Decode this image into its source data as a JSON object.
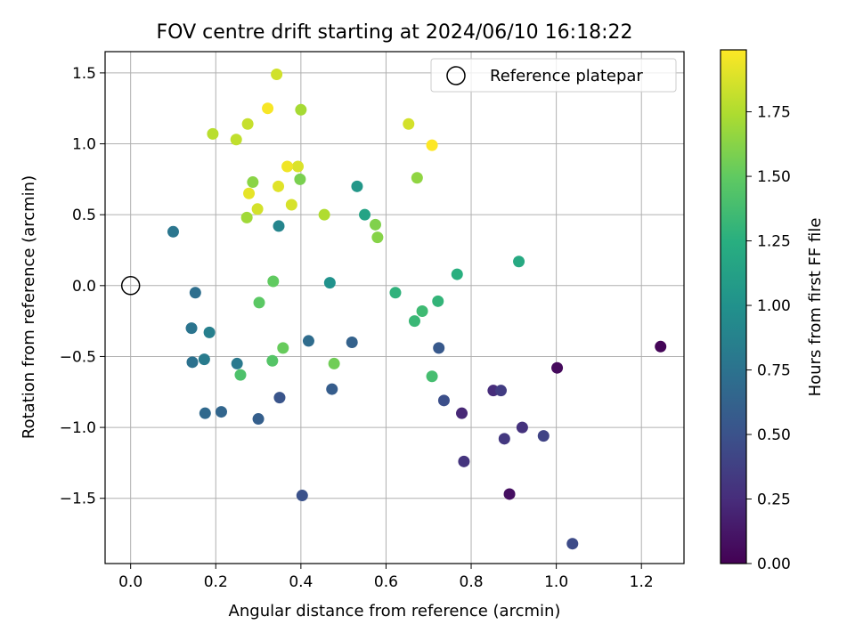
{
  "chart_data": {
    "type": "scatter",
    "title": "FOV centre drift starting at 2024/06/10 16:18:22",
    "xlabel": "Angular distance from reference (arcmin)",
    "ylabel": "Rotation from reference (arcmin)",
    "xlim": [
      -0.06,
      1.3
    ],
    "ylim": [
      -1.96,
      1.65
    ],
    "xticks": [
      0.0,
      0.2,
      0.4,
      0.6,
      0.8,
      1.0,
      1.2
    ],
    "xtick_labels": [
      "0.0",
      "0.2",
      "0.4",
      "0.6",
      "0.8",
      "1.0",
      "1.2"
    ],
    "yticks": [
      -1.5,
      -1.0,
      -0.5,
      0.0,
      0.5,
      1.0,
      1.5
    ],
    "ytick_labels": [
      "−1.5",
      "−1.0",
      "−0.5",
      "0.0",
      "0.5",
      "1.0",
      "1.5"
    ],
    "grid": true,
    "legend_position": "top-right",
    "reference": {
      "name": "Reference platepar",
      "x": 0.0,
      "y": 0.0
    },
    "colorbar": {
      "label": "Hours from first FF file",
      "colormap": "viridis",
      "range": [
        0.0,
        1.99
      ],
      "ticks": [
        0.0,
        0.25,
        0.5,
        0.75,
        1.0,
        1.25,
        1.5,
        1.75
      ],
      "tick_labels": [
        "0.00",
        "0.25",
        "0.50",
        "0.75",
        "1.00",
        "1.25",
        "1.50",
        "1.75"
      ]
    },
    "points": [
      {
        "x": 1.245,
        "y": -0.43,
        "c": 0.02
      },
      {
        "x": 1.002,
        "y": -0.58,
        "c": 0.05
      },
      {
        "x": 0.89,
        "y": -1.47,
        "c": 0.08
      },
      {
        "x": 0.778,
        "y": -0.9,
        "c": 0.22
      },
      {
        "x": 0.852,
        "y": -0.74,
        "c": 0.25
      },
      {
        "x": 0.92,
        "y": -1.0,
        "c": 0.28
      },
      {
        "x": 0.783,
        "y": -1.24,
        "c": 0.3
      },
      {
        "x": 0.878,
        "y": -1.08,
        "c": 0.32
      },
      {
        "x": 0.87,
        "y": -0.74,
        "c": 0.35
      },
      {
        "x": 0.97,
        "y": -1.06,
        "c": 0.4
      },
      {
        "x": 1.038,
        "y": -1.82,
        "c": 0.45
      },
      {
        "x": 0.736,
        "y": -0.81,
        "c": 0.48
      },
      {
        "x": 0.403,
        "y": -1.48,
        "c": 0.5
      },
      {
        "x": 0.35,
        "y": -0.79,
        "c": 0.52
      },
      {
        "x": 0.724,
        "y": -0.44,
        "c": 0.55
      },
      {
        "x": 0.473,
        "y": -0.73,
        "c": 0.58
      },
      {
        "x": 0.3,
        "y": -0.94,
        "c": 0.6
      },
      {
        "x": 0.52,
        "y": -0.4,
        "c": 0.62
      },
      {
        "x": 0.213,
        "y": -0.89,
        "c": 0.65
      },
      {
        "x": 0.175,
        "y": -0.9,
        "c": 0.68
      },
      {
        "x": 0.418,
        "y": -0.39,
        "c": 0.7
      },
      {
        "x": 0.152,
        "y": -0.05,
        "c": 0.72
      },
      {
        "x": 0.145,
        "y": -0.54,
        "c": 0.74
      },
      {
        "x": 0.143,
        "y": -0.3,
        "c": 0.76
      },
      {
        "x": 0.1,
        "y": 0.38,
        "c": 0.78
      },
      {
        "x": 0.25,
        "y": -0.55,
        "c": 0.8
      },
      {
        "x": 0.173,
        "y": -0.52,
        "c": 0.82
      },
      {
        "x": 0.185,
        "y": -0.33,
        "c": 0.85
      },
      {
        "x": 0.348,
        "y": 0.42,
        "c": 0.9
      },
      {
        "x": 0.468,
        "y": 0.02,
        "c": 1.0
      },
      {
        "x": 0.532,
        "y": 0.7,
        "c": 1.05
      },
      {
        "x": 0.55,
        "y": 0.5,
        "c": 1.15
      },
      {
        "x": 0.912,
        "y": 0.17,
        "c": 1.2
      },
      {
        "x": 0.767,
        "y": 0.08,
        "c": 1.25
      },
      {
        "x": 0.622,
        "y": -0.05,
        "c": 1.28
      },
      {
        "x": 0.722,
        "y": -0.11,
        "c": 1.3
      },
      {
        "x": 0.667,
        "y": -0.25,
        "c": 1.33
      },
      {
        "x": 0.685,
        "y": -0.18,
        "c": 1.35
      },
      {
        "x": 0.708,
        "y": -0.64,
        "c": 1.38
      },
      {
        "x": 0.258,
        "y": -0.63,
        "c": 1.42
      },
      {
        "x": 0.333,
        "y": -0.53,
        "c": 1.45
      },
      {
        "x": 0.302,
        "y": -0.12,
        "c": 1.48
      },
      {
        "x": 0.335,
        "y": 0.03,
        "c": 1.5
      },
      {
        "x": 0.358,
        "y": -0.44,
        "c": 1.52
      },
      {
        "x": 0.478,
        "y": -0.55,
        "c": 1.55
      },
      {
        "x": 0.398,
        "y": 0.75,
        "c": 1.58
      },
      {
        "x": 0.575,
        "y": 0.43,
        "c": 1.6
      },
      {
        "x": 0.58,
        "y": 0.34,
        "c": 1.62
      },
      {
        "x": 0.287,
        "y": 0.73,
        "c": 1.63
      },
      {
        "x": 0.673,
        "y": 0.76,
        "c": 1.65
      },
      {
        "x": 0.273,
        "y": 0.48,
        "c": 1.7
      },
      {
        "x": 0.4,
        "y": 1.24,
        "c": 1.72
      },
      {
        "x": 0.455,
        "y": 0.5,
        "c": 1.75
      },
      {
        "x": 0.193,
        "y": 1.07,
        "c": 1.78
      },
      {
        "x": 0.248,
        "y": 1.03,
        "c": 1.8
      },
      {
        "x": 0.275,
        "y": 1.14,
        "c": 1.82
      },
      {
        "x": 0.343,
        "y": 1.49,
        "c": 1.85
      },
      {
        "x": 0.653,
        "y": 1.14,
        "c": 1.86
      },
      {
        "x": 0.298,
        "y": 0.54,
        "c": 1.86
      },
      {
        "x": 0.378,
        "y": 0.57,
        "c": 1.87
      },
      {
        "x": 0.393,
        "y": 0.84,
        "c": 1.88
      },
      {
        "x": 0.347,
        "y": 0.7,
        "c": 1.9
      },
      {
        "x": 0.278,
        "y": 0.65,
        "c": 1.92
      },
      {
        "x": 0.368,
        "y": 0.84,
        "c": 1.95
      },
      {
        "x": 0.322,
        "y": 1.25,
        "c": 1.97
      },
      {
        "x": 0.708,
        "y": 0.99,
        "c": 1.99
      }
    ]
  }
}
